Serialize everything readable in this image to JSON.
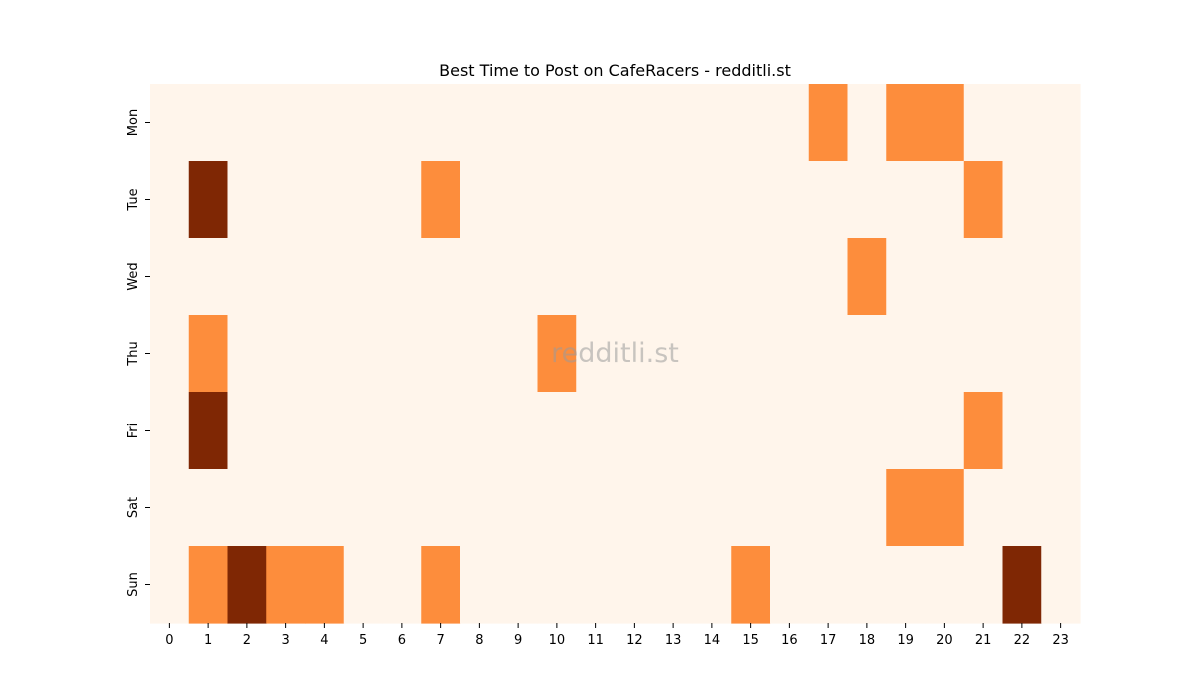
{
  "chart_data": {
    "type": "heatmap",
    "title": "Best Time to Post on CafeRacers - redditli.st",
    "xlabel": "",
    "ylabel": "",
    "x": [
      "0",
      "1",
      "2",
      "3",
      "4",
      "5",
      "6",
      "7",
      "8",
      "9",
      "10",
      "11",
      "12",
      "13",
      "14",
      "15",
      "16",
      "17",
      "18",
      "19",
      "20",
      "21",
      "22",
      "23"
    ],
    "y": [
      "Mon",
      "Tue",
      "Wed",
      "Thu",
      "Fri",
      "Sat",
      "Sun"
    ],
    "values": [
      [
        0,
        0,
        0,
        0,
        0,
        0,
        0,
        0,
        0,
        0,
        0,
        0,
        0,
        0,
        0,
        0,
        0,
        1,
        0,
        1,
        1,
        0,
        0,
        0
      ],
      [
        0,
        2,
        0,
        0,
        0,
        0,
        0,
        1,
        0,
        0,
        0,
        0,
        0,
        0,
        0,
        0,
        0,
        0,
        0,
        0,
        0,
        1,
        0,
        0
      ],
      [
        0,
        0,
        0,
        0,
        0,
        0,
        0,
        0,
        0,
        0,
        0,
        0,
        0,
        0,
        0,
        0,
        0,
        0,
        1,
        0,
        0,
        0,
        0,
        0
      ],
      [
        0,
        1,
        0,
        0,
        0,
        0,
        0,
        0,
        0,
        0,
        1,
        0,
        0,
        0,
        0,
        0,
        0,
        0,
        0,
        0,
        0,
        0,
        0,
        0
      ],
      [
        0,
        2,
        0,
        0,
        0,
        0,
        0,
        0,
        0,
        0,
        0,
        0,
        0,
        0,
        0,
        0,
        0,
        0,
        0,
        0,
        0,
        1,
        0,
        0
      ],
      [
        0,
        0,
        0,
        0,
        0,
        0,
        0,
        0,
        0,
        0,
        0,
        0,
        0,
        0,
        0,
        0,
        0,
        0,
        0,
        1,
        1,
        0,
        0,
        0
      ],
      [
        0,
        1,
        2,
        1,
        1,
        0,
        0,
        1,
        0,
        0,
        0,
        0,
        0,
        0,
        0,
        1,
        0,
        0,
        0,
        0,
        0,
        0,
        2,
        0
      ]
    ],
    "colors": {
      "0": "#fff5eb",
      "1": "#fd8d3c",
      "2": "#7f2704"
    },
    "colormap": "Oranges",
    "grid": false,
    "legend": "none",
    "watermark": "redditli.st"
  }
}
